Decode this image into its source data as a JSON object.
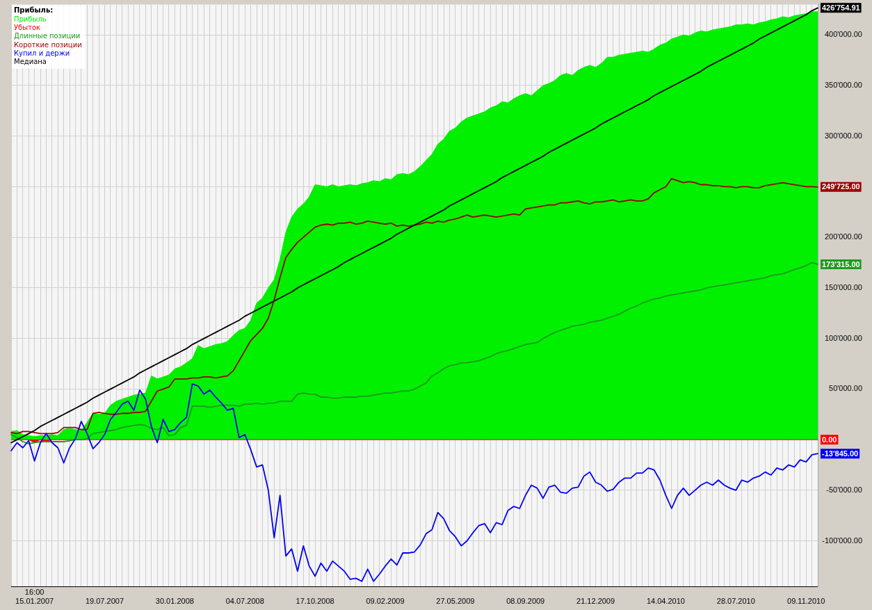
{
  "chart_data": {
    "type": "line",
    "categories": [
      null,
      null,
      null,
      null,
      "16:00\n15.01.2007",
      null,
      null,
      null,
      null,
      null,
      null,
      null,
      null,
      null,
      null,
      null,
      "19.07.2007",
      null,
      null,
      null,
      null,
      null,
      null,
      null,
      null,
      null,
      null,
      null,
      "30.01.2008",
      null,
      null,
      null,
      null,
      null,
      null,
      null,
      null,
      null,
      null,
      null,
      "04.07.2008",
      null,
      null,
      null,
      null,
      null,
      null,
      null,
      null,
      null,
      null,
      null,
      "17.10.2008",
      null,
      null,
      null,
      null,
      null,
      null,
      null,
      null,
      null,
      null,
      null,
      "09.02.2009",
      null,
      null,
      null,
      null,
      null,
      null,
      null,
      null,
      null,
      null,
      null,
      "27.05.2009",
      null,
      null,
      null,
      null,
      null,
      null,
      null,
      null,
      null,
      null,
      null,
      "08.09.2009",
      null,
      null,
      null,
      null,
      null,
      null,
      null,
      null,
      null,
      null,
      null,
      "21.12.2009",
      null,
      null,
      null,
      null,
      null,
      null,
      null,
      null,
      null,
      null,
      null,
      "14.04.2010",
      null,
      null,
      null,
      null,
      null,
      null,
      null,
      null,
      null,
      null,
      null,
      "28.07.2010",
      null,
      null,
      null,
      null,
      null,
      null,
      null,
      null,
      null,
      null,
      null,
      "09.11.2010",
      null,
      null
    ],
    "series": [
      {
        "name": "Прибыль",
        "type": "area",
        "color": "#00f000",
        "values": [
          8000,
          9000,
          5000,
          4000,
          3000,
          4000,
          4000,
          5000,
          4000,
          10000,
          11000,
          10000,
          9000,
          17000,
          26000,
          25000,
          26000,
          34000,
          38000,
          40000,
          42000,
          44000,
          45000,
          46000,
          63000,
          60000,
          62000,
          64000,
          70000,
          72000,
          76000,
          80000,
          93000,
          90000,
          92000,
          94000,
          95000,
          97000,
          103000,
          108000,
          110000,
          118000,
          135000,
          140000,
          150000,
          158000,
          178000,
          205000,
          220000,
          228000,
          233000,
          240000,
          252000,
          251000,
          250000,
          252000,
          250000,
          251000,
          252000,
          251000,
          253000,
          254000,
          256000,
          255000,
          258000,
          257000,
          262000,
          263000,
          262000,
          265000,
          270000,
          276000,
          282000,
          292000,
          297000,
          305000,
          308000,
          314000,
          318000,
          320000,
          322000,
          324000,
          328000,
          330000,
          334000,
          333000,
          337000,
          340000,
          342000,
          340000,
          345000,
          350000,
          352000,
          355000,
          360000,
          362000,
          360000,
          365000,
          368000,
          370000,
          368000,
          372000,
          378000,
          378000,
          380000,
          381000,
          382000,
          383000,
          384000,
          383000,
          386000,
          390000,
          392000,
          396000,
          398000,
          400000,
          399000,
          402000,
          404000,
          403000,
          405000,
          406000,
          407000,
          408000,
          410000,
          410000,
          411000,
          410000,
          412000,
          413000,
          415000,
          416000,
          418000,
          417000,
          419000,
          420000,
          421000,
          423000,
          423000
        ]
      },
      {
        "name": "Убыток",
        "type": "area",
        "color": "#ff0000",
        "values": [
          0,
          0,
          0,
          0,
          -3000,
          0,
          -2000,
          0,
          0,
          0,
          0,
          0,
          0,
          0,
          0,
          0,
          0,
          0,
          0,
          0,
          0,
          0,
          0,
          0,
          0,
          0,
          0,
          0,
          0,
          0,
          0,
          0,
          0,
          0,
          0,
          0,
          0,
          0,
          0,
          0,
          0,
          0,
          0,
          0,
          0,
          0,
          0,
          0,
          0,
          0,
          0,
          0,
          0,
          0,
          0,
          0,
          0,
          0,
          0,
          0,
          0,
          0,
          0,
          0,
          0,
          0,
          0,
          0,
          0,
          0,
          0,
          0,
          0,
          0,
          0,
          0,
          0,
          0,
          0,
          0,
          0,
          0,
          0,
          0,
          0,
          0,
          0,
          0,
          0,
          0,
          0,
          0,
          0,
          0,
          0,
          0,
          0,
          0,
          0,
          0,
          0,
          0,
          0,
          0,
          0,
          0,
          0,
          0,
          0,
          0,
          0,
          0,
          0,
          0,
          0,
          0,
          0,
          0,
          0,
          0,
          0,
          0,
          0,
          0,
          0,
          0,
          0,
          0,
          0,
          0,
          0,
          0,
          0,
          0,
          0,
          0,
          0,
          0,
          0
        ],
        "value_labels": [
          null,
          null,
          null,
          null,
          null,
          null,
          null,
          null,
          null,
          null,
          null,
          null,
          null,
          null,
          null,
          null,
          null,
          null,
          null,
          null,
          null,
          null,
          null,
          null,
          null,
          null,
          null,
          null,
          null,
          null,
          null,
          null,
          null,
          null,
          null,
          null,
          null,
          null,
          null,
          null,
          null,
          null,
          null,
          null,
          null,
          null,
          null,
          null,
          null,
          null,
          null,
          null,
          null,
          null,
          null,
          null,
          null,
          null,
          null,
          null,
          null,
          null,
          null,
          null,
          null,
          null,
          null,
          null,
          null,
          null,
          null,
          null,
          null,
          null,
          null,
          null,
          null,
          null,
          null,
          null,
          null,
          null,
          null,
          null,
          null,
          null,
          null,
          null,
          null,
          null,
          null,
          null,
          null,
          null,
          null,
          null,
          null,
          null,
          null,
          null,
          null,
          null,
          null,
          null,
          null,
          null,
          null,
          null,
          null,
          null,
          null,
          null,
          null,
          null,
          null,
          null,
          null,
          null,
          null,
          null,
          null,
          null,
          null,
          null,
          null,
          null,
          null,
          null,
          null,
          null,
          null,
          null,
          null,
          null,
          null,
          null,
          null,
          null,
          "0.00"
        ]
      },
      {
        "name": "Длинные позиции",
        "type": "line",
        "color": "#1e9a1e",
        "values": [
          5000,
          2000,
          -2000,
          -4000,
          -3000,
          -2000,
          -2000,
          -2000,
          -2000,
          -2000,
          -1000,
          0,
          0,
          1000,
          6000,
          7000,
          8000,
          9000,
          10000,
          12000,
          13000,
          14000,
          15000,
          14000,
          11000,
          10000,
          12000,
          4000,
          5000,
          12000,
          14000,
          33000,
          33000,
          33000,
          32000,
          33000,
          34000,
          34000,
          34000,
          33000,
          35000,
          35000,
          36000,
          35000,
          36000,
          36000,
          38000,
          38000,
          38000,
          45000,
          46000,
          45000,
          45000,
          42000,
          42000,
          41000,
          41000,
          42000,
          42000,
          42000,
          43000,
          43000,
          44000,
          45000,
          46000,
          46000,
          47000,
          48000,
          48000,
          50000,
          53000,
          56000,
          63000,
          66000,
          70000,
          73000,
          74000,
          76000,
          76000,
          77000,
          78000,
          80000,
          82000,
          85000,
          87000,
          88000,
          90000,
          92000,
          94000,
          95000,
          96000,
          100000,
          103000,
          106000,
          108000,
          110000,
          112000,
          113000,
          114000,
          116000,
          117000,
          118000,
          120000,
          122000,
          124000,
          127000,
          130000,
          132000,
          135000,
          137000,
          139000,
          140000,
          142000,
          143000,
          144000,
          145000,
          146000,
          147000,
          148000,
          150000,
          151000,
          152000,
          153000,
          154000,
          155000,
          156000,
          157000,
          158000,
          159000,
          160000,
          162000,
          163000,
          164000,
          166000,
          168000,
          170000,
          172000,
          175000,
          173315
        ],
        "value_labels": [
          null,
          null,
          null,
          null,
          null,
          null,
          null,
          null,
          null,
          null,
          null,
          null,
          null,
          null,
          null,
          null,
          null,
          null,
          null,
          null,
          null,
          null,
          null,
          null,
          null,
          null,
          null,
          null,
          null,
          null,
          null,
          null,
          null,
          null,
          null,
          null,
          null,
          null,
          null,
          null,
          null,
          null,
          null,
          null,
          null,
          null,
          null,
          null,
          null,
          null,
          null,
          null,
          null,
          null,
          null,
          null,
          null,
          null,
          null,
          null,
          null,
          null,
          null,
          null,
          null,
          null,
          null,
          null,
          null,
          null,
          null,
          null,
          null,
          null,
          null,
          null,
          null,
          null,
          null,
          null,
          null,
          null,
          null,
          null,
          null,
          null,
          null,
          null,
          null,
          null,
          null,
          null,
          null,
          null,
          null,
          null,
          null,
          null,
          null,
          null,
          null,
          null,
          null,
          null,
          null,
          null,
          null,
          null,
          null,
          null,
          null,
          null,
          null,
          null,
          null,
          null,
          null,
          null,
          null,
          null,
          null,
          null,
          null,
          null,
          null,
          null,
          null,
          null,
          null,
          null,
          null,
          null,
          null,
          null,
          null,
          null,
          null,
          null,
          "173'315.00"
        ]
      },
      {
        "name": "Короткие позиции",
        "type": "line",
        "color": "#9a0000",
        "values": [
          7000,
          6000,
          8000,
          8000,
          7000,
          6000,
          6000,
          6000,
          7000,
          12000,
          12000,
          12000,
          10000,
          10000,
          26000,
          27000,
          26000,
          25000,
          25000,
          26000,
          26000,
          27000,
          27000,
          28000,
          38000,
          48000,
          50000,
          52000,
          60000,
          60000,
          60000,
          61000,
          61000,
          62000,
          62000,
          61000,
          62000,
          63000,
          68000,
          78000,
          88000,
          98000,
          104000,
          110000,
          120000,
          138000,
          160000,
          180000,
          188000,
          195000,
          200000,
          205000,
          210000,
          212000,
          213000,
          212000,
          214000,
          214000,
          215000,
          213000,
          214000,
          216000,
          215000,
          214000,
          213000,
          214000,
          211000,
          212000,
          211000,
          212000,
          213000,
          215000,
          214000,
          216000,
          215000,
          217000,
          218000,
          220000,
          222000,
          220000,
          221000,
          222000,
          221000,
          220000,
          221000,
          222000,
          223000,
          222000,
          228000,
          229000,
          230000,
          231000,
          232000,
          232000,
          234000,
          234000,
          235000,
          236000,
          234000,
          233000,
          235000,
          235000,
          236000,
          237000,
          235000,
          236000,
          237000,
          236000,
          236000,
          238000,
          244000,
          247000,
          250000,
          258000,
          256000,
          254000,
          255000,
          254000,
          252000,
          252000,
          251000,
          251000,
          250000,
          250000,
          249000,
          250000,
          250000,
          249000,
          249000,
          251000,
          252000,
          253000,
          254000,
          253000,
          252000,
          251000,
          250000,
          250000,
          249725
        ],
        "value_labels": [
          null,
          null,
          null,
          null,
          null,
          null,
          null,
          null,
          null,
          null,
          null,
          null,
          null,
          null,
          null,
          null,
          null,
          null,
          null,
          null,
          null,
          null,
          null,
          null,
          null,
          null,
          null,
          null,
          null,
          null,
          null,
          null,
          null,
          null,
          null,
          null,
          null,
          null,
          null,
          null,
          null,
          null,
          null,
          null,
          null,
          null,
          null,
          null,
          null,
          null,
          null,
          null,
          null,
          null,
          null,
          null,
          null,
          null,
          null,
          null,
          null,
          null,
          null,
          null,
          null,
          null,
          null,
          null,
          null,
          null,
          null,
          null,
          null,
          null,
          null,
          null,
          null,
          null,
          null,
          null,
          null,
          null,
          null,
          null,
          null,
          null,
          null,
          null,
          null,
          null,
          null,
          null,
          null,
          null,
          null,
          null,
          null,
          null,
          null,
          null,
          null,
          null,
          null,
          null,
          null,
          null,
          null,
          null,
          null,
          null,
          null,
          null,
          null,
          null,
          null,
          null,
          null,
          null,
          null,
          null,
          null,
          null,
          null,
          null,
          null,
          null,
          null,
          null,
          null,
          null,
          null,
          null,
          null,
          null,
          null,
          null,
          null,
          null,
          "249'725.00"
        ]
      },
      {
        "name": "Купил и держи",
        "type": "line",
        "color": "#0000f0",
        "values": [
          -11000,
          -3000,
          -8000,
          -1000,
          -21000,
          -3000,
          6000,
          -3000,
          -8000,
          -23000,
          -8000,
          1000,
          18000,
          6000,
          -9000,
          -3000,
          5000,
          20000,
          27000,
          35000,
          38000,
          29000,
          49000,
          40000,
          13000,
          -3000,
          20000,
          8000,
          10000,
          17000,
          22000,
          55000,
          53000,
          45000,
          49000,
          42000,
          36000,
          29000,
          31000,
          2000,
          5000,
          -10000,
          -27000,
          -25000,
          -50000,
          -97000,
          -55000,
          -115000,
          -108000,
          -130000,
          -105000,
          -125000,
          -135000,
          -122000,
          -130000,
          -120000,
          -125000,
          -130000,
          -138000,
          -137000,
          -140000,
          -128000,
          -140000,
          -133000,
          -125000,
          -118000,
          -124000,
          -112000,
          -112000,
          -111000,
          -104000,
          -93000,
          -89000,
          -72000,
          -78000,
          -90000,
          -96000,
          -105000,
          -100000,
          -92000,
          -85000,
          -83000,
          -92000,
          -82000,
          -84000,
          -70000,
          -66000,
          -68000,
          -55000,
          -45000,
          -48000,
          -58000,
          -47000,
          -45000,
          -52000,
          -53000,
          -48000,
          -47000,
          -36000,
          -32000,
          -42000,
          -45000,
          -51000,
          -49000,
          -42000,
          -38000,
          -38000,
          -33000,
          -33000,
          -28000,
          -30000,
          -40000,
          -55000,
          -68000,
          -55000,
          -48000,
          -55000,
          -50000,
          -45000,
          -42000,
          -45000,
          -40000,
          -45000,
          -48000,
          -50000,
          -40000,
          -42000,
          -38000,
          -36000,
          -32000,
          -35000,
          -28000,
          -30000,
          -25000,
          -27000,
          -20000,
          -22000,
          -15000,
          -13845
        ],
        "value_labels": [
          null,
          null,
          null,
          null,
          null,
          null,
          null,
          null,
          null,
          null,
          null,
          null,
          null,
          null,
          null,
          null,
          null,
          null,
          null,
          null,
          null,
          null,
          null,
          null,
          null,
          null,
          null,
          null,
          null,
          null,
          null,
          null,
          null,
          null,
          null,
          null,
          null,
          null,
          null,
          null,
          null,
          null,
          null,
          null,
          null,
          null,
          null,
          null,
          null,
          null,
          null,
          null,
          null,
          null,
          null,
          null,
          null,
          null,
          null,
          null,
          null,
          null,
          null,
          null,
          null,
          null,
          null,
          null,
          null,
          null,
          null,
          null,
          null,
          null,
          null,
          null,
          null,
          null,
          null,
          null,
          null,
          null,
          null,
          null,
          null,
          null,
          null,
          null,
          null,
          null,
          null,
          null,
          null,
          null,
          null,
          null,
          null,
          null,
          null,
          null,
          null,
          null,
          null,
          null,
          null,
          null,
          null,
          null,
          null,
          null,
          null,
          null,
          null,
          null,
          null,
          null,
          null,
          null,
          null,
          null,
          null,
          null,
          null,
          null,
          null,
          null,
          null,
          null,
          null,
          null,
          null,
          null,
          null,
          null,
          null,
          null,
          null,
          null,
          "-13'845.00"
        ]
      },
      {
        "name": "Медиана",
        "type": "line",
        "color": "#000000",
        "values": [
          -3000,
          0,
          3000,
          6000,
          9000,
          13000,
          16000,
          19000,
          22000,
          25000,
          28000,
          31000,
          34000,
          37000,
          41000,
          44000,
          47000,
          50000,
          53000,
          56000,
          59000,
          62000,
          66000,
          69000,
          72000,
          75000,
          78000,
          81000,
          84000,
          87000,
          90000,
          94000,
          97000,
          100000,
          103000,
          106000,
          109000,
          112000,
          115000,
          118000,
          122000,
          125000,
          128000,
          131000,
          134000,
          137000,
          140000,
          143000,
          146000,
          150000,
          153000,
          156000,
          159000,
          162000,
          165000,
          168000,
          171000,
          175000,
          178000,
          181000,
          184000,
          187000,
          190000,
          193000,
          196000,
          199000,
          203000,
          206000,
          209000,
          212000,
          215000,
          218000,
          221000,
          224000,
          227000,
          231000,
          234000,
          237000,
          240000,
          243000,
          246000,
          249000,
          252000,
          255000,
          259000,
          262000,
          265000,
          268000,
          271000,
          274000,
          277000,
          280000,
          284000,
          287000,
          290000,
          293000,
          296000,
          299000,
          302000,
          305000,
          308000,
          312000,
          315000,
          318000,
          321000,
          324000,
          327000,
          330000,
          333000,
          336000,
          340000,
          343000,
          346000,
          349000,
          352000,
          355000,
          358000,
          361000,
          364000,
          368000,
          371000,
          374000,
          377000,
          380000,
          383000,
          386000,
          389000,
          392000,
          396000,
          399000,
          402000,
          405000,
          408000,
          411000,
          414000,
          417000,
          420000,
          424000,
          426754.91
        ],
        "value_labels": [
          null,
          null,
          null,
          null,
          null,
          null,
          null,
          null,
          null,
          null,
          null,
          null,
          null,
          null,
          null,
          null,
          null,
          null,
          null,
          null,
          null,
          null,
          null,
          null,
          null,
          null,
          null,
          null,
          null,
          null,
          null,
          null,
          null,
          null,
          null,
          null,
          null,
          null,
          null,
          null,
          null,
          null,
          null,
          null,
          null,
          null,
          null,
          null,
          null,
          null,
          null,
          null,
          null,
          null,
          null,
          null,
          null,
          null,
          null,
          null,
          null,
          null,
          null,
          null,
          null,
          null,
          null,
          null,
          null,
          null,
          null,
          null,
          null,
          null,
          null,
          null,
          null,
          null,
          null,
          null,
          null,
          null,
          null,
          null,
          null,
          null,
          null,
          null,
          null,
          null,
          null,
          null,
          null,
          null,
          null,
          null,
          null,
          null,
          null,
          null,
          null,
          null,
          null,
          null,
          null,
          null,
          null,
          null,
          null,
          null,
          null,
          null,
          null,
          null,
          null,
          null,
          null,
          null,
          null,
          null,
          null,
          null,
          null,
          null,
          null,
          null,
          null,
          null,
          null,
          null,
          null,
          null,
          null,
          null,
          null,
          null,
          null,
          null,
          "426'754.91"
        ]
      }
    ],
    "ylim": [
      -145000,
      430000
    ],
    "yticks": [
      {
        "value": -100000,
        "label": "-100'000.00"
      },
      {
        "value": -50000,
        "label": "-50'000.00"
      },
      {
        "value": 0,
        "label": null
      },
      {
        "value": 50000,
        "label": "50'000.00"
      },
      {
        "value": 100000,
        "label": "100'000.00"
      },
      {
        "value": 150000,
        "label": "150'000.00"
      },
      {
        "value": 200000,
        "label": "200'000.00"
      },
      {
        "value": 250000,
        "label": null
      },
      {
        "value": 300000,
        "label": "300'000.00"
      },
      {
        "value": 350000,
        "label": "350'000.00"
      },
      {
        "value": 400000,
        "label": "400'000.00"
      }
    ],
    "grid": true,
    "legend": "top left",
    "legend_title": "Прибыль:"
  }
}
